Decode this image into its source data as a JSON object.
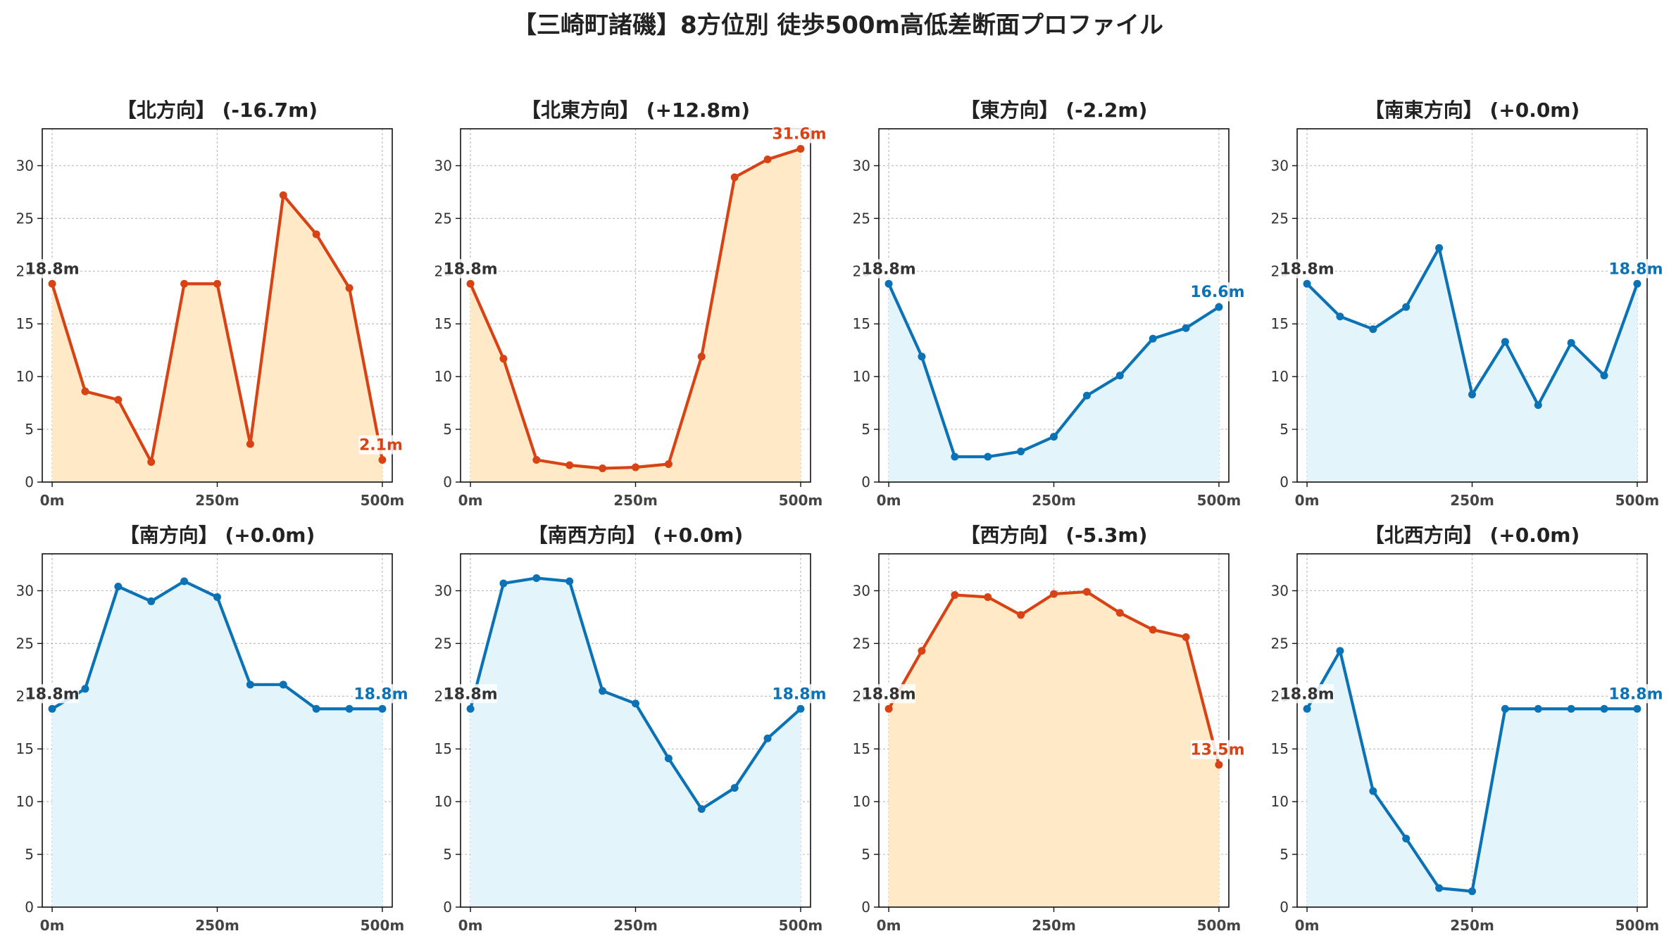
{
  "title": "【三崎町諸磯】8方位別 徒歩500m高低差断面プロファイル",
  "colors": {
    "down": "#D84315",
    "down_fill": "#FFE9C6",
    "up": "#0B72B5",
    "up_fill": "#E4F4FB",
    "start_label": "#333333",
    "grid": "#BDBDBD"
  },
  "chart_data": [
    {
      "type": "area",
      "title": "【北方向】 (-16.7m)",
      "trend": "down",
      "x": [
        0,
        50,
        100,
        150,
        200,
        250,
        300,
        350,
        400,
        450,
        500
      ],
      "y": [
        18.8,
        8.6,
        7.8,
        1.9,
        18.8,
        18.8,
        3.6,
        27.2,
        23.5,
        18.4,
        2.1
      ],
      "start_label": "18.8m",
      "end_label": "2.1m",
      "xticks": [
        "0m",
        "250m",
        "500m"
      ],
      "ylim": [
        0,
        33.5
      ],
      "yticks": [
        0,
        5,
        10,
        15,
        20,
        25,
        30
      ],
      "grid": true
    },
    {
      "type": "area",
      "title": "【北東方向】 (+12.8m)",
      "trend": "down",
      "x": [
        0,
        50,
        100,
        150,
        200,
        250,
        300,
        350,
        400,
        450,
        500
      ],
      "y": [
        18.8,
        11.7,
        2.1,
        1.6,
        1.3,
        1.4,
        1.7,
        11.9,
        28.9,
        30.6,
        31.6
      ],
      "start_label": "18.8m",
      "end_label": "31.6m",
      "xticks": [
        "0m",
        "250m",
        "500m"
      ],
      "ylim": [
        0,
        33.5
      ],
      "yticks": [
        0,
        5,
        10,
        15,
        20,
        25,
        30
      ],
      "grid": true
    },
    {
      "type": "area",
      "title": "【東方向】 (-2.2m)",
      "trend": "up",
      "x": [
        0,
        50,
        100,
        150,
        200,
        250,
        300,
        350,
        400,
        450,
        500
      ],
      "y": [
        18.8,
        11.9,
        2.4,
        2.4,
        2.9,
        4.3,
        8.2,
        10.1,
        13.6,
        14.6,
        16.6
      ],
      "start_label": "18.8m",
      "end_label": "16.6m",
      "xticks": [
        "0m",
        "250m",
        "500m"
      ],
      "ylim": [
        0,
        33.5
      ],
      "yticks": [
        0,
        5,
        10,
        15,
        20,
        25,
        30
      ],
      "grid": true
    },
    {
      "type": "area",
      "title": "【南東方向】 (+0.0m)",
      "trend": "up",
      "x": [
        0,
        50,
        100,
        150,
        200,
        250,
        300,
        350,
        400,
        450,
        500
      ],
      "y": [
        18.8,
        15.7,
        14.5,
        16.6,
        22.2,
        8.3,
        13.3,
        7.3,
        13.2,
        10.1,
        18.8
      ],
      "start_label": "18.8m",
      "end_label": "18.8m",
      "xticks": [
        "0m",
        "250m",
        "500m"
      ],
      "ylim": [
        0,
        33.5
      ],
      "yticks": [
        0,
        5,
        10,
        15,
        20,
        25,
        30
      ],
      "grid": true
    },
    {
      "type": "area",
      "title": "【南方向】 (+0.0m)",
      "trend": "up",
      "x": [
        0,
        50,
        100,
        150,
        200,
        250,
        300,
        350,
        400,
        450,
        500
      ],
      "y": [
        18.8,
        20.7,
        30.4,
        29.0,
        30.9,
        29.4,
        21.1,
        21.1,
        18.8,
        18.8,
        18.8
      ],
      "start_label": "18.8m",
      "end_label": "18.8m",
      "xticks": [
        "0m",
        "250m",
        "500m"
      ],
      "ylim": [
        0,
        33.5
      ],
      "yticks": [
        0,
        5,
        10,
        15,
        20,
        25,
        30
      ],
      "grid": true
    },
    {
      "type": "area",
      "title": "【南西方向】 (+0.0m)",
      "trend": "up",
      "x": [
        0,
        50,
        100,
        150,
        200,
        250,
        300,
        350,
        400,
        450,
        500
      ],
      "y": [
        18.8,
        30.7,
        31.2,
        30.9,
        20.5,
        19.3,
        14.1,
        9.3,
        11.3,
        16.0,
        18.8
      ],
      "start_label": "18.8m",
      "end_label": "18.8m",
      "xticks": [
        "0m",
        "250m",
        "500m"
      ],
      "ylim": [
        0,
        33.5
      ],
      "yticks": [
        0,
        5,
        10,
        15,
        20,
        25,
        30
      ],
      "grid": true
    },
    {
      "type": "area",
      "title": "【西方向】 (-5.3m)",
      "trend": "down",
      "x": [
        0,
        50,
        100,
        150,
        200,
        250,
        300,
        350,
        400,
        450,
        500
      ],
      "y": [
        18.8,
        24.3,
        29.6,
        29.4,
        27.7,
        29.7,
        29.9,
        27.9,
        26.3,
        25.6,
        13.5
      ],
      "start_label": "18.8m",
      "end_label": "13.5m",
      "xticks": [
        "0m",
        "250m",
        "500m"
      ],
      "ylim": [
        0,
        33.5
      ],
      "yticks": [
        0,
        5,
        10,
        15,
        20,
        25,
        30
      ],
      "grid": true
    },
    {
      "type": "area",
      "title": "【北西方向】 (+0.0m)",
      "trend": "up",
      "x": [
        0,
        50,
        100,
        150,
        200,
        250,
        300,
        350,
        400,
        450,
        500
      ],
      "y": [
        18.8,
        24.3,
        11.0,
        6.5,
        1.8,
        1.5,
        18.8,
        18.8,
        18.8,
        18.8,
        18.8
      ],
      "start_label": "18.8m",
      "end_label": "18.8m",
      "xticks": [
        "0m",
        "250m",
        "500m"
      ],
      "ylim": [
        0,
        33.5
      ],
      "yticks": [
        0,
        5,
        10,
        15,
        20,
        25,
        30
      ],
      "grid": true
    }
  ]
}
